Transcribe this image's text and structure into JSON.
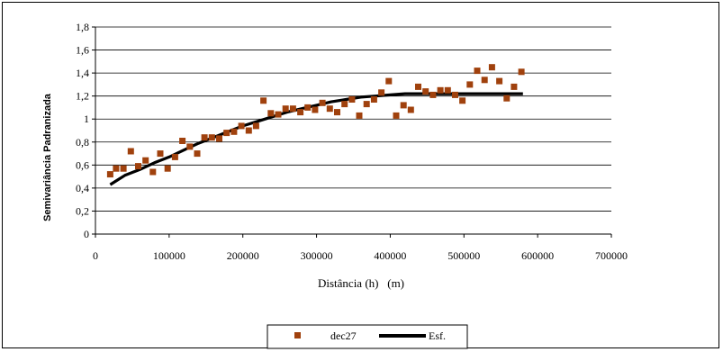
{
  "chart_data": {
    "type": "scatter",
    "xlabel": "Distância (h)   (m)",
    "ylabel": "Semivariância Padranizada",
    "xlim": [
      0,
      700000
    ],
    "ylim": [
      0,
      1.8
    ],
    "x_ticks": [
      0,
      100000,
      200000,
      300000,
      400000,
      500000,
      600000,
      700000
    ],
    "y_ticks": [
      0,
      0.2,
      0.4,
      0.6,
      0.8,
      1,
      1.2,
      1.4,
      1.6,
      1.8
    ],
    "x_tick_labels": [
      "0",
      "100000",
      "200000",
      "300000",
      "400000",
      "500000",
      "600000",
      "700000"
    ],
    "y_tick_labels": [
      "0",
      "0,2",
      "0,4",
      "0,6",
      "0,8",
      "1",
      "1,2",
      "1,4",
      "1,6",
      "1,8"
    ],
    "grid": "horizontal",
    "legend_position": "bottom",
    "series": [
      {
        "name": "dec27",
        "kind": "scatter",
        "marker": "square",
        "color": "#A0410D",
        "x": [
          20000,
          28000,
          38000,
          48000,
          58000,
          68000,
          78000,
          88000,
          98000,
          108000,
          118000,
          128000,
          138000,
          148000,
          158000,
          168000,
          178000,
          188000,
          198000,
          208000,
          218000,
          228000,
          238000,
          248000,
          258000,
          268000,
          278000,
          288000,
          298000,
          308000,
          318000,
          328000,
          338000,
          348000,
          358000,
          368000,
          378000,
          388000,
          398000,
          408000,
          418000,
          428000,
          438000,
          448000,
          458000,
          468000,
          478000,
          488000,
          498000,
          508000,
          518000,
          528000,
          538000,
          548000,
          558000,
          568000,
          578000
        ],
        "y": [
          0.52,
          0.57,
          0.57,
          0.72,
          0.59,
          0.64,
          0.54,
          0.7,
          0.57,
          0.67,
          0.81,
          0.76,
          0.7,
          0.84,
          0.84,
          0.83,
          0.88,
          0.89,
          0.94,
          0.9,
          0.94,
          1.16,
          1.05,
          1.04,
          1.09,
          1.09,
          1.06,
          1.1,
          1.08,
          1.14,
          1.09,
          1.06,
          1.13,
          1.17,
          1.03,
          1.13,
          1.17,
          1.23,
          1.33,
          1.03,
          1.12,
          1.08,
          1.28,
          1.24,
          1.21,
          1.25,
          1.25,
          1.21,
          1.16,
          1.3,
          1.42,
          1.34,
          1.45,
          1.33,
          1.18,
          1.28,
          1.41
        ]
      },
      {
        "name": "Esf.",
        "kind": "line",
        "color": "#000000",
        "x": [
          20000,
          40000,
          60000,
          80000,
          100000,
          120000,
          140000,
          160000,
          180000,
          200000,
          220000,
          240000,
          260000,
          280000,
          300000,
          320000,
          340000,
          360000,
          380000,
          400000,
          420000,
          440000,
          460000,
          480000,
          500000,
          520000,
          540000,
          560000,
          580000
        ],
        "y": [
          0.43,
          0.51,
          0.56,
          0.62,
          0.67,
          0.73,
          0.79,
          0.84,
          0.89,
          0.94,
          0.98,
          1.02,
          1.06,
          1.09,
          1.12,
          1.15,
          1.17,
          1.19,
          1.2,
          1.21,
          1.22,
          1.22,
          1.22,
          1.22,
          1.22,
          1.22,
          1.22,
          1.22,
          1.22
        ]
      }
    ]
  }
}
